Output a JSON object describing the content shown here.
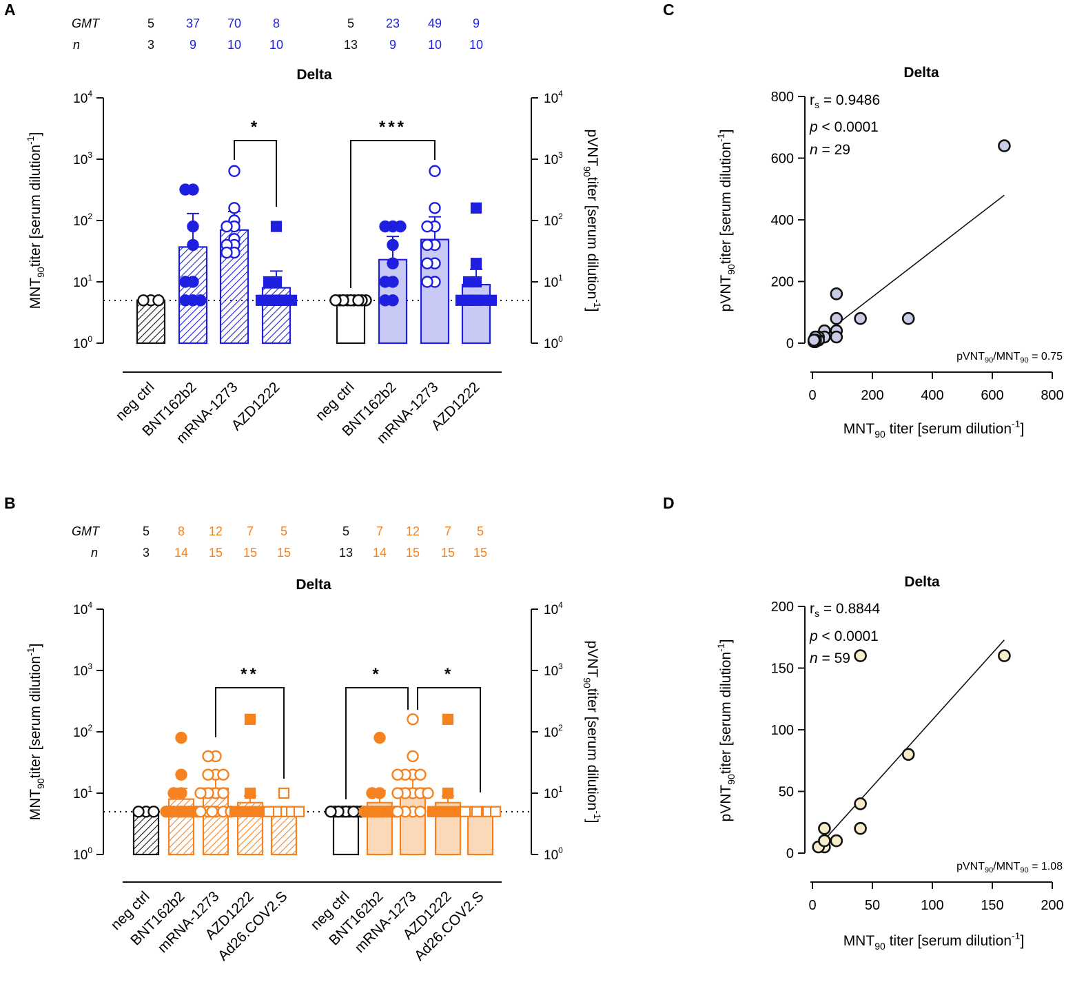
{
  "colors": {
    "black": "#111111",
    "blue": "#1f1fe0",
    "blue_light": "#c9c9f5",
    "blue_point_fill": "#c8cce6",
    "orange": "#f5821f",
    "orange_light": "#fbd9b8",
    "orange_point_fill": "#f7edc8"
  },
  "chart_data": [
    {
      "panel": "A",
      "type": "bar",
      "title": "Delta",
      "scale": "log",
      "ylim": [
        1,
        10000
      ],
      "ylabel_left_main": "MNT",
      "ylabel_left_sub": "90",
      "ylabel_left_rest": "titer [serum dilution",
      "ylabel_right_main": "pVNT",
      "ylabel_right_sub": "90",
      "ylabel_right_rest": "titer [serum dilution",
      "exp_sup": "-1",
      "close_bracket": "]",
      "tick_base": "10",
      "tick_exps": [
        "0",
        "1",
        "2",
        "3",
        "4"
      ],
      "threshold": 5,
      "header_labels": [
        "GMT",
        "n"
      ],
      "groups": [
        {
          "assay": "MNT90",
          "categories": [
            "neg ctrl",
            "BNT162b2",
            "mRNA-1273",
            "AZD1222"
          ],
          "gmt": [
            "5",
            "37",
            "70",
            "8"
          ],
          "n": [
            "3",
            "9",
            "10",
            "10"
          ],
          "values": [
            5,
            37,
            70,
            8
          ],
          "errors": [
            5,
            130,
            140,
            15
          ],
          "points": [
            [
              5,
              5,
              5
            ],
            [
              320,
              320,
              80,
              40,
              10,
              10,
              5,
              5,
              5
            ],
            [
              640,
              160,
              100,
              80,
              80,
              50,
              40,
              40,
              30,
              30
            ],
            [
              80,
              10,
              10,
              5,
              5,
              5,
              5,
              5,
              5,
              5
            ]
          ]
        },
        {
          "assay": "pVNT90",
          "categories": [
            "neg ctrl",
            "BNT162b2",
            "mRNA-1273",
            "AZD1222"
          ],
          "gmt": [
            "5",
            "23",
            "49",
            "9"
          ],
          "n": [
            "13",
            "9",
            "10",
            "10"
          ],
          "values": [
            5,
            23,
            49,
            9
          ],
          "errors": [
            5,
            55,
            115,
            16
          ],
          "points": [
            [
              5,
              5,
              5,
              5,
              5,
              5,
              5,
              5,
              5,
              5,
              5,
              5,
              5
            ],
            [
              80,
              80,
              80,
              40,
              20,
              10,
              10,
              5,
              5
            ],
            [
              640,
              160,
              80,
              80,
              40,
              40,
              20,
              20,
              10,
              10
            ],
            [
              160,
              20,
              10,
              10,
              5,
              5,
              5,
              5,
              5,
              5
            ]
          ]
        }
      ],
      "significance": [
        {
          "label": "*"
        },
        {
          "label": "***"
        }
      ]
    },
    {
      "panel": "B",
      "type": "bar",
      "title": "Delta",
      "scale": "log",
      "ylim": [
        1,
        10000
      ],
      "ylabel_left_main": "MNT",
      "ylabel_left_sub": "90",
      "ylabel_left_rest": "titer [serum dilution",
      "ylabel_right_main": "pVNT",
      "ylabel_right_sub": "90",
      "ylabel_right_rest": "titer [serum dilution",
      "exp_sup": "-1",
      "close_bracket": "]",
      "tick_base": "10",
      "tick_exps": [
        "0",
        "1",
        "2",
        "3",
        "4"
      ],
      "threshold": 5,
      "header_labels": [
        "GMT",
        "n"
      ],
      "groups": [
        {
          "assay": "MNT90",
          "categories": [
            "neg ctrl",
            "BNT162b2",
            "mRNA-1273",
            "AZD1222",
            "Ad26.COV2.S"
          ],
          "gmt": [
            "5",
            "8",
            "12",
            "7",
            "5"
          ],
          "n": [
            "3",
            "14",
            "15",
            "15",
            "15"
          ],
          "values": [
            5,
            8,
            12,
            7,
            5
          ],
          "errors": [
            5,
            12,
            20,
            9,
            6
          ],
          "points": [
            [
              5,
              5,
              5
            ],
            [
              80,
              20,
              10,
              10,
              5,
              5,
              5,
              5,
              5,
              5,
              5,
              5,
              5,
              5
            ],
            [
              40,
              40,
              20,
              20,
              10,
              10,
              5,
              5,
              5,
              10,
              20,
              10,
              5,
              5,
              5
            ],
            [
              160,
              10,
              5,
              5,
              5,
              5,
              5,
              5,
              5,
              5,
              5,
              5,
              5,
              5,
              5
            ],
            [
              10,
              5,
              5,
              5,
              5,
              5,
              5,
              5,
              5,
              5,
              5,
              5,
              5,
              5,
              5
            ]
          ]
        },
        {
          "assay": "pVNT90",
          "categories": [
            "neg ctrl",
            "BNT162b2",
            "mRNA-1273",
            "AZD1222",
            "Ad26.COV2.S"
          ],
          "gmt": [
            "5",
            "7",
            "12",
            "7",
            "5"
          ],
          "n": [
            "13",
            "14",
            "15",
            "15",
            "15"
          ],
          "values": [
            5,
            7,
            12,
            7,
            5
          ],
          "errors": [
            5,
            11,
            20,
            9,
            6
          ],
          "points": [
            [
              5,
              5,
              5,
              5,
              5,
              5,
              5,
              5,
              5,
              5,
              5,
              5,
              5
            ],
            [
              80,
              10,
              10,
              5,
              5,
              5,
              5,
              5,
              5,
              5,
              5,
              5,
              5,
              5
            ],
            [
              160,
              40,
              20,
              20,
              20,
              10,
              10,
              10,
              5,
              5,
              5,
              10,
              20,
              10,
              5
            ],
            [
              160,
              10,
              5,
              5,
              5,
              5,
              5,
              5,
              5,
              5,
              5,
              5,
              5,
              5,
              5
            ],
            [
              5,
              5,
              5,
              5,
              5,
              5,
              5,
              5,
              5,
              5,
              5,
              5,
              5,
              5,
              5
            ]
          ]
        }
      ],
      "significance": [
        {
          "label": "**"
        },
        {
          "label": "*"
        },
        {
          "label": "*"
        }
      ]
    },
    {
      "panel": "C",
      "type": "scatter",
      "title": "Delta",
      "xlabel_main": "MNT",
      "xlabel_sub": "90",
      "xlabel_rest": " titer [serum dilution",
      "ylabel_main": "pVNT",
      "ylabel_sub": "90",
      "ylabel_rest": "titer [serum dilution",
      "exp_sup": "-1",
      "close_bracket": "]",
      "xlim": [
        0,
        800
      ],
      "ylim": [
        0,
        800
      ],
      "xticks": [
        "0",
        "200",
        "400",
        "600",
        "800"
      ],
      "yticks": [
        "0",
        "200",
        "400",
        "600",
        "800"
      ],
      "rs_main": "r",
      "rs_sub": "s",
      "rs_value": " = 0.9486",
      "p_label": "p",
      "p_value": " < 0.0001",
      "n_label": "n",
      "n_value": " = 29",
      "ratio_main": "pVNT",
      "ratio_sub1": "90",
      "ratio_mid": "/MNT",
      "ratio_sub2": "90",
      "ratio_value": " = 0.75",
      "points": [
        [
          640,
          640
        ],
        [
          320,
          80
        ],
        [
          160,
          80
        ],
        [
          80,
          160
        ],
        [
          80,
          80
        ],
        [
          80,
          40
        ],
        [
          80,
          20
        ],
        [
          40,
          40
        ],
        [
          40,
          20
        ],
        [
          20,
          20
        ],
        [
          20,
          10
        ],
        [
          10,
          20
        ],
        [
          10,
          10
        ],
        [
          10,
          5
        ],
        [
          5,
          5
        ],
        [
          5,
          10
        ]
      ],
      "fit_line": [
        [
          5,
          3.75
        ],
        [
          640,
          480
        ]
      ]
    },
    {
      "panel": "D",
      "type": "scatter",
      "title": "Delta",
      "xlabel_main": "MNT",
      "xlabel_sub": "90",
      "xlabel_rest": " titer [serum dilution",
      "ylabel_main": "pVNT",
      "ylabel_sub": "90",
      "ylabel_rest": "titer [serum dilution",
      "exp_sup": "-1",
      "close_bracket": "]",
      "xlim": [
        0,
        200
      ],
      "ylim": [
        0,
        200
      ],
      "xticks": [
        "0",
        "50",
        "100",
        "150",
        "200"
      ],
      "yticks": [
        "0",
        "50",
        "100",
        "150",
        "200"
      ],
      "rs_main": "r",
      "rs_sub": "s",
      "rs_value": " = 0.8844",
      "p_label": "p",
      "p_value": " < 0.0001",
      "n_label": "n",
      "n_value": " = 59",
      "ratio_main": "pVNT",
      "ratio_sub1": "90",
      "ratio_mid": "/MNT",
      "ratio_sub2": "90",
      "ratio_value": " = 1.08",
      "points": [
        [
          160,
          160
        ],
        [
          80,
          80
        ],
        [
          40,
          160
        ],
        [
          40,
          40
        ],
        [
          40,
          20
        ],
        [
          20,
          10
        ],
        [
          10,
          20
        ],
        [
          10,
          5
        ],
        [
          5,
          5
        ],
        [
          10,
          10
        ]
      ],
      "fit_line": [
        [
          5,
          5.4
        ],
        [
          160,
          172.8
        ]
      ]
    }
  ],
  "panel_labels": [
    "A",
    "B",
    "C",
    "D"
  ]
}
